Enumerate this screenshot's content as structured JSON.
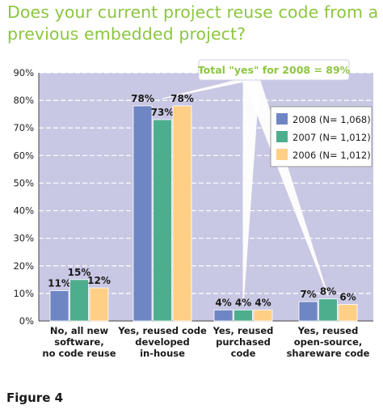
{
  "title": "Does your current project reuse code from a previous embedded project?",
  "figure_label": "Figure 4",
  "colors": {
    "plot_background": "#c8c8e4",
    "series": [
      "#6f86c4",
      "#4dae8e",
      "#ffcf86"
    ],
    "callout_text": "#8cc63f"
  },
  "chart_data": {
    "type": "bar",
    "categories": [
      [
        "No, all new",
        "software,",
        "no code reuse"
      ],
      [
        "Yes, reused code",
        "developed",
        "in-house"
      ],
      [
        "Yes, reused",
        "purchased",
        "code"
      ],
      [
        "Yes, reused",
        "open-source,",
        "shareware code"
      ]
    ],
    "series": [
      {
        "name": "2008 (N= 1,068)",
        "values": [
          11,
          78,
          4,
          7
        ]
      },
      {
        "name": "2007 (N= 1,012)",
        "values": [
          15,
          73,
          4,
          8
        ]
      },
      {
        "name": "2006 (N= 1,012)",
        "values": [
          12,
          78,
          4,
          6
        ]
      }
    ],
    "value_labels": [
      [
        "11%",
        "78%",
        "4%",
        "7%"
      ],
      [
        "15%",
        "73%",
        "4%",
        "8%"
      ],
      [
        "12%",
        "78%",
        "4%",
        "6%"
      ]
    ],
    "ylim": [
      0,
      90
    ],
    "yticks": [
      "0%",
      "10%",
      "20%",
      "30%",
      "40%",
      "50%",
      "60%",
      "70%",
      "80%",
      "90%"
    ],
    "grid": true,
    "legend_position": "top-right",
    "annotation": "Total \"yes\" for 2008 = 89%"
  }
}
